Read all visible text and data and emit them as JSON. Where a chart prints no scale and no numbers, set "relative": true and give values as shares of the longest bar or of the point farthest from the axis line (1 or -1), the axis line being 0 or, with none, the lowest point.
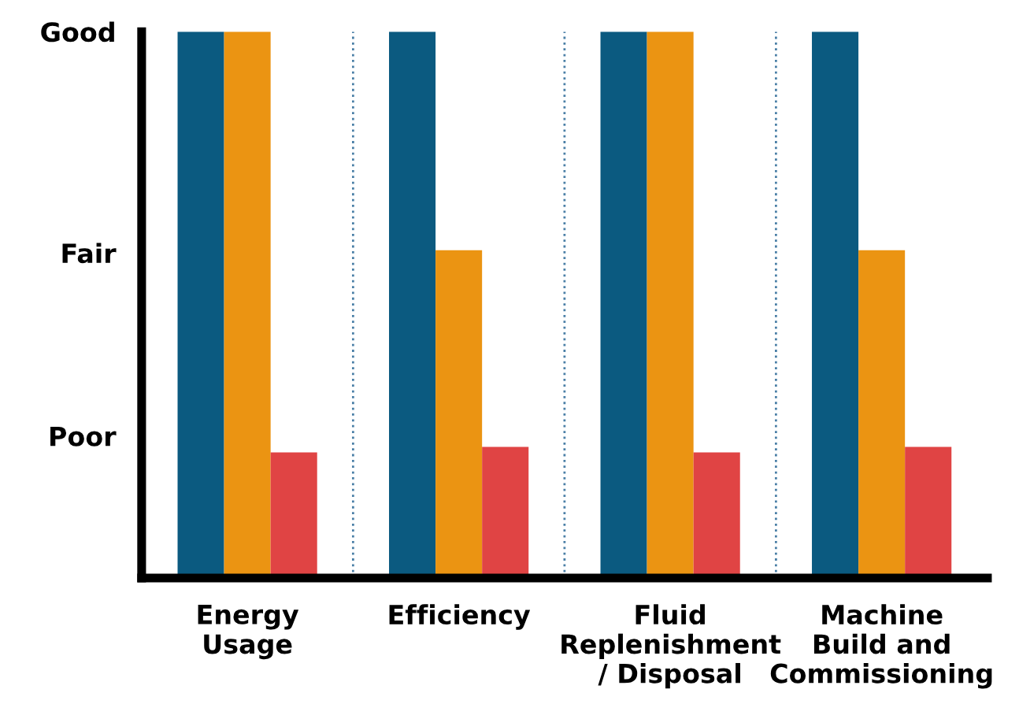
{
  "chart_data": {
    "type": "bar",
    "relative": true,
    "categories": [
      "Energy\nUsage",
      "Efficiency",
      "Fluid\nReplenishment\n/ Disposal",
      "Machine\nBuild and\nCommissioning"
    ],
    "series": [
      {
        "color": "#0b5a80",
        "values": [
          1,
          1,
          1,
          1
        ]
      },
      {
        "color": "#eb9412",
        "values": [
          1,
          0.6,
          1,
          0.6
        ]
      },
      {
        "color": "#e04444",
        "values": [
          0.23,
          0.24,
          0.23,
          0.24
        ]
      }
    ],
    "annotations": [
      "Good",
      "Fair",
      "Poor"
    ],
    "grid": false,
    "legend": false
  }
}
